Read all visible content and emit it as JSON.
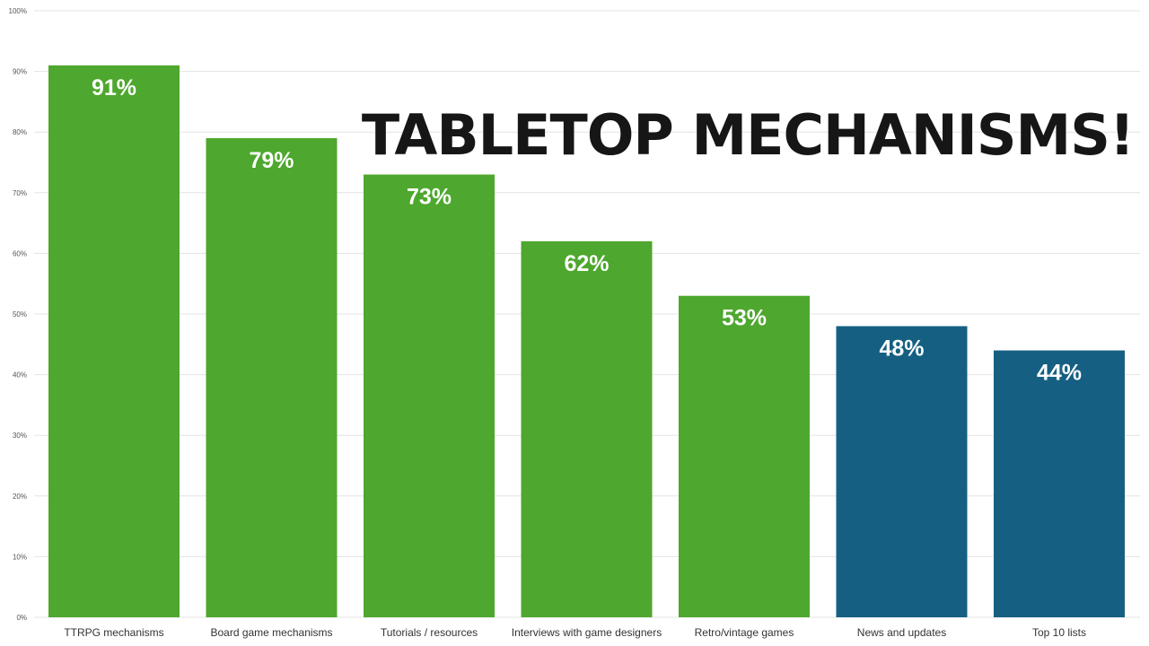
{
  "chart_data": {
    "type": "bar",
    "title": "TABLETOP MECHANISMS!",
    "xlabel": "",
    "ylabel": "",
    "ylim": [
      0,
      100
    ],
    "grid": true,
    "legend": "none",
    "categories": [
      "TTRPG mechanisms",
      "Board game mechanisms",
      "Tutorials / resources",
      "Interviews with game designers",
      "Retro/vintage games",
      "News and updates",
      "Top 10 lists"
    ],
    "values": [
      91,
      79,
      73,
      62,
      53,
      48,
      44
    ],
    "value_labels": [
      "91%",
      "79%",
      "73%",
      "62%",
      "53%",
      "48%",
      "44%"
    ],
    "y_ticks": [
      0,
      10,
      20,
      30,
      40,
      50,
      60,
      70,
      80,
      90,
      100
    ],
    "y_tick_labels": [
      "0%",
      "10%",
      "20%",
      "30%",
      "40%",
      "50%",
      "60%",
      "70%",
      "80%",
      "90%",
      "100%"
    ],
    "colors": [
      "#4ea72e",
      "#4ea72e",
      "#4ea72e",
      "#4ea72e",
      "#4ea72e",
      "#156082",
      "#156082"
    ]
  }
}
